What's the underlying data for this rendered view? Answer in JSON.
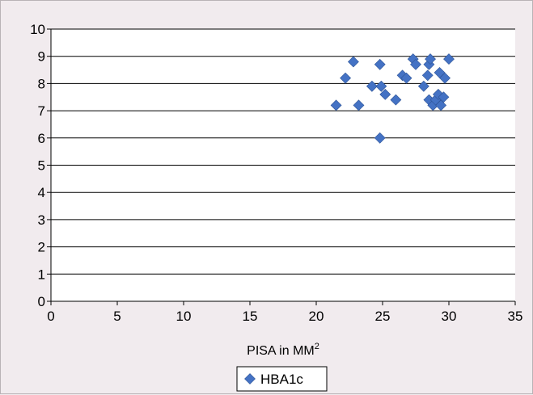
{
  "chart_data": {
    "type": "scatter",
    "title": "",
    "xlabel": "PISA in MM",
    "xlabel_superscript": "2",
    "ylabel": "",
    "xlim": [
      0,
      35
    ],
    "ylim": [
      0,
      10
    ],
    "x_ticks": [
      0,
      5,
      10,
      15,
      20,
      25,
      30,
      35
    ],
    "y_ticks": [
      0,
      1,
      2,
      3,
      4,
      5,
      6,
      7,
      8,
      9,
      10
    ],
    "grid": "horizontal",
    "legend_position": "bottom",
    "series": [
      {
        "name": "HBA1c",
        "color": "#4472c4",
        "marker": "diamond",
        "points": [
          [
            21.5,
            7.2
          ],
          [
            22.2,
            8.2
          ],
          [
            22.8,
            8.8
          ],
          [
            23.2,
            7.2
          ],
          [
            24.2,
            7.9
          ],
          [
            24.8,
            8.7
          ],
          [
            24.8,
            6.0
          ],
          [
            24.9,
            7.9
          ],
          [
            25.2,
            7.6
          ],
          [
            26.0,
            7.4
          ],
          [
            26.5,
            8.3
          ],
          [
            26.8,
            8.2
          ],
          [
            27.3,
            8.9
          ],
          [
            27.5,
            8.7
          ],
          [
            28.1,
            7.9
          ],
          [
            28.4,
            8.3
          ],
          [
            28.5,
            8.7
          ],
          [
            28.6,
            8.9
          ],
          [
            28.5,
            7.4
          ],
          [
            28.8,
            7.2
          ],
          [
            29.0,
            7.4
          ],
          [
            29.2,
            7.6
          ],
          [
            29.3,
            8.4
          ],
          [
            29.4,
            7.2
          ],
          [
            29.6,
            7.5
          ],
          [
            29.7,
            8.2
          ],
          [
            30.0,
            8.9
          ]
        ]
      }
    ]
  }
}
